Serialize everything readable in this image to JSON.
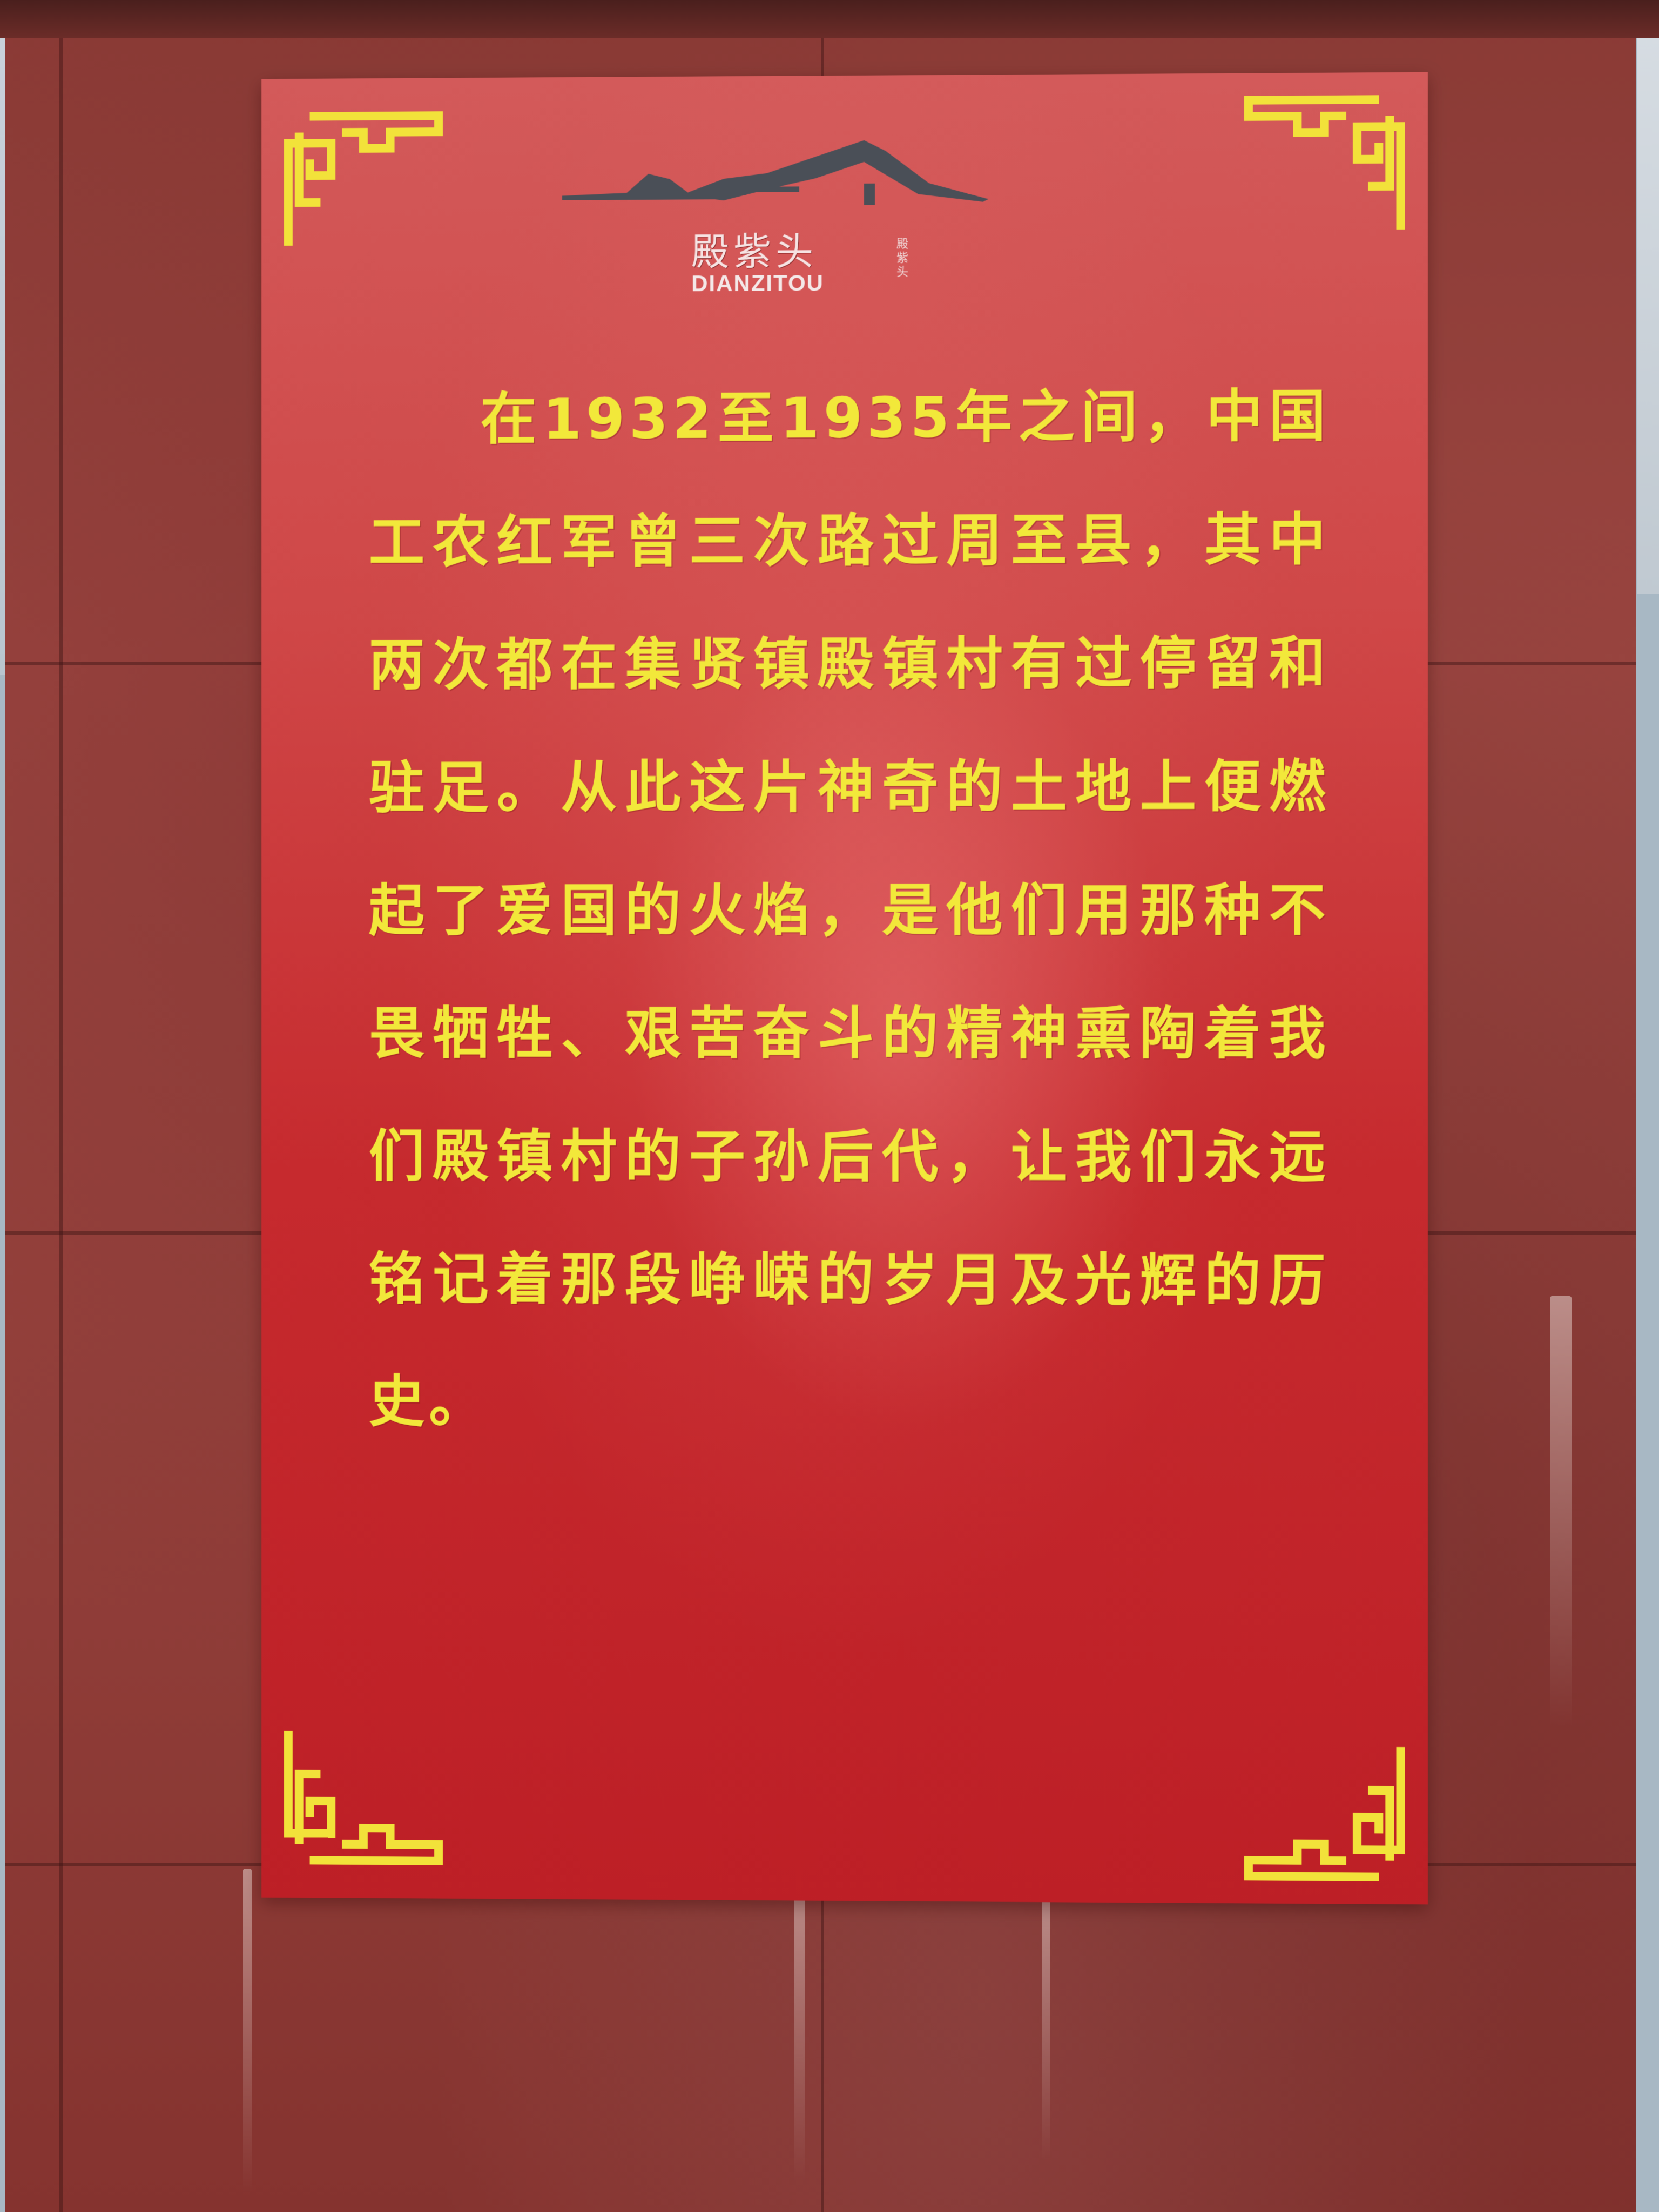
{
  "sign": {
    "logo_name": "殿紫头",
    "logo_romanized": "DIANZITOU",
    "logo_seal": "殿紫头",
    "paragraph": "在1932至1935年之间，中国工农红军曾三次路过周至县，其中两次都在集贤镇殿镇村有过停留和驻足。从此这片神奇的土地上便燃起了爱国的火焰，是他们用那种不畏牺牲、艰苦奋斗的精神熏陶着我们殿镇村的子孙后代，让我们永远铭记着那段峥嵘的岁月及光辉的历史。"
  },
  "colors": {
    "board_red": "#c62a2e",
    "text_yellow": "#f2e83a",
    "wall_granite": "#94413c",
    "roof_gray": "#4a4f57"
  },
  "icons": {
    "corner_ornament": "fret-corner-icon",
    "roof": "roof-logo-icon"
  }
}
